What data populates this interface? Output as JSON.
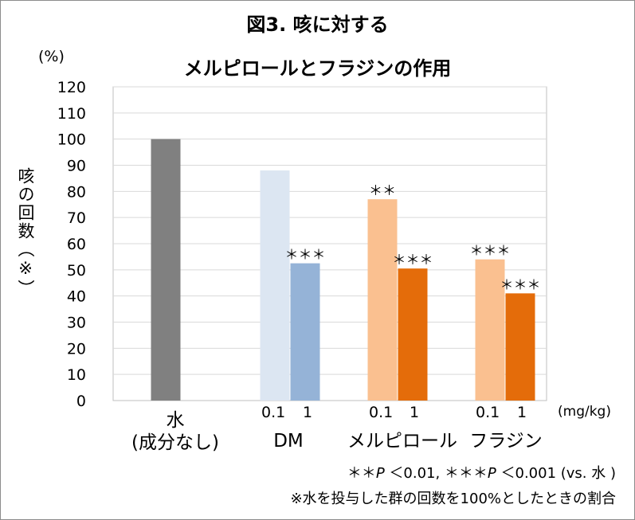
{
  "chart_data": {
    "type": "bar",
    "title_line1": "図3. 咳に対する",
    "title_line2": "メルピロールとフラジンの作用",
    "unit": "(%)",
    "ylabel": "咳の回数（※）",
    "ylim": [
      0,
      120
    ],
    "yticks": [
      0,
      10,
      20,
      30,
      40,
      50,
      60,
      70,
      80,
      90,
      100,
      110,
      120
    ],
    "grid": true,
    "groups": [
      {
        "label": "水\n(成分なし)",
        "dose_labels": [],
        "bars": [
          {
            "value": 100,
            "color": "#808080",
            "marker": ""
          }
        ]
      },
      {
        "label": "DM",
        "dose_labels": [
          "0.1",
          "1"
        ],
        "bars": [
          {
            "value": 88,
            "color": "#dce6f2",
            "marker": ""
          },
          {
            "value": 52.5,
            "color": "#95b3d7",
            "marker": "＊＊＊"
          }
        ]
      },
      {
        "label": "メルピロール",
        "dose_labels": [
          "0.1",
          "1"
        ],
        "bars": [
          {
            "value": 77,
            "color": "#fac090",
            "marker": "＊＊"
          },
          {
            "value": 50.5,
            "color": "#e46c0a",
            "marker": "＊＊＊"
          }
        ]
      },
      {
        "label": "フラジン",
        "dose_labels": [
          "0.1",
          "1"
        ],
        "bars": [
          {
            "value": 54,
            "color": "#fac090",
            "marker": "＊＊＊"
          },
          {
            "value": 41,
            "color": "#e46c0a",
            "marker": "＊＊＊"
          }
        ]
      }
    ],
    "dose_unit": "(mg/kg)"
  },
  "notes": {
    "sig_prefix1": "＊＊",
    "sig_p1": "P",
    "sig_mid": " ＜0.01,  ＊＊＊",
    "sig_p2": "P",
    "sig_end": " ＜0.001  (vs. 水 )",
    "footnote": "※水を投与した群の回数を100%としたときの割合"
  }
}
